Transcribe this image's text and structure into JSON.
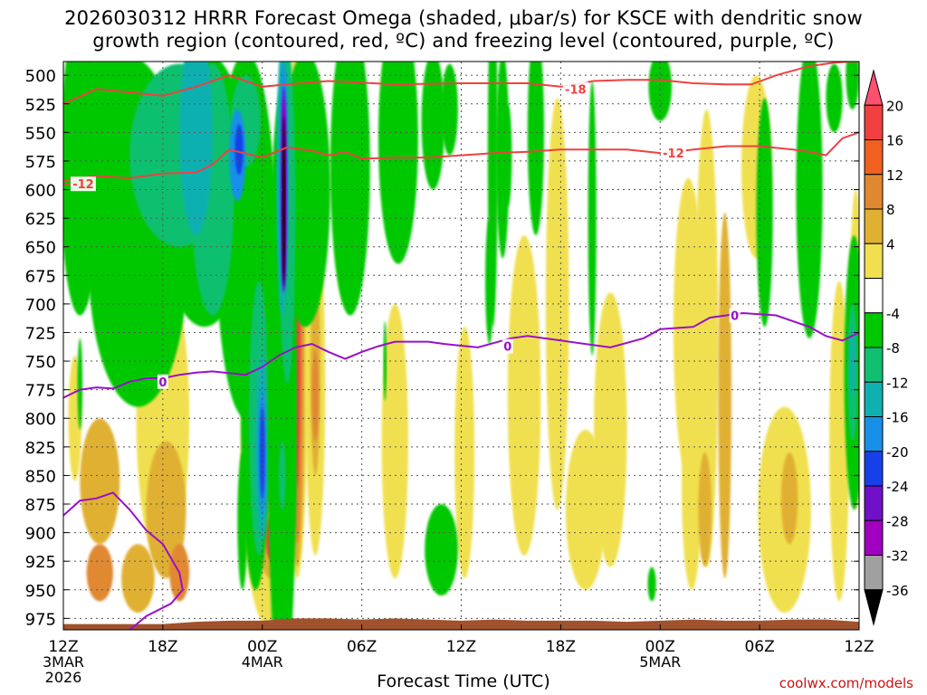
{
  "title": {
    "line1": "2026030312 HRRR Forecast Omega (shaded, μbar/s) for KSCE with dendritic snow",
    "line2": "growth region (contoured, red, ºC) and freezing level (contoured, purple, ºC)"
  },
  "footer": {
    "xlabel": "Forecast Time (UTC)",
    "credit": "coolwx.com/models"
  },
  "colors": {
    "dendritic_contour": "#f04040",
    "freezing_contour": "#9a10c8",
    "ground": "#a0522d",
    "grid": "#555555"
  },
  "chart_data": {
    "type": "heatmap",
    "title": "2026030312 HRRR Forecast Omega (shaded, μbar/s) for KSCE with dendritic snow growth region (contoured, red, ºC) and freezing level (contoured, purple, ºC)",
    "xlabel": "Forecast Time (UTC)",
    "ylabel": "",
    "y_axis": {
      "ticks": [
        500,
        525,
        550,
        575,
        600,
        625,
        650,
        675,
        700,
        725,
        750,
        775,
        800,
        825,
        850,
        875,
        900,
        925,
        950,
        975
      ],
      "ylim": [
        985,
        488
      ],
      "unit": "mb"
    },
    "x_axis": {
      "hours": [
        0,
        6,
        12,
        18,
        24,
        30,
        36,
        42,
        48
      ],
      "tick_labels": [
        "12Z",
        "18Z",
        "00Z",
        "06Z",
        "12Z",
        "18Z",
        "00Z",
        "06Z",
        "12Z"
      ],
      "date_labels": [
        {
          "hour": 0,
          "lines": [
            "3MAR",
            "2026"
          ]
        },
        {
          "hour": 12,
          "lines": [
            "4MAR"
          ]
        },
        {
          "hour": 36,
          "lines": [
            "5MAR"
          ]
        }
      ],
      "xlim": [
        0,
        48
      ]
    },
    "colorbar": {
      "labels": [
        "20",
        "16",
        "12",
        "8",
        "4",
        "-4",
        "-8",
        "-12",
        "-16",
        "-20",
        "-24",
        "-28",
        "-32",
        "-36"
      ],
      "colors": [
        "#ff5070",
        "#f04040",
        "#f06020",
        "#e08830",
        "#e0b030",
        "#f0e050",
        "#ffffff",
        "#00c800",
        "#10c070",
        "#10b0b0",
        "#1890e8",
        "#1840e8",
        "#7010c8",
        "#a000c0",
        "#a0a0a0",
        "#000000"
      ]
    },
    "omega_blobs": [
      {
        "h": 2.2,
        "p": 855,
        "rh": 1.2,
        "rp": 55,
        "c": 3
      },
      {
        "h": 2.2,
        "p": 935,
        "rh": 0.8,
        "rp": 25,
        "c": 4
      },
      {
        "h": 6.0,
        "p": 800,
        "rh": 1.6,
        "rp": 130,
        "c": 2
      },
      {
        "h": 6.2,
        "p": 880,
        "rh": 1.2,
        "rp": 60,
        "c": 3
      },
      {
        "h": 7.0,
        "p": 935,
        "rh": 0.6,
        "rp": 25,
        "c": 4
      },
      {
        "h": 5.0,
        "p": 735,
        "rh": 0.9,
        "rp": 45,
        "c": 2
      },
      {
        "h": 4.5,
        "p": 940,
        "rh": 1.0,
        "rp": 30,
        "c": 3
      },
      {
        "h": 12.5,
        "p": 835,
        "rh": 1.8,
        "rp": 150,
        "c": 2
      },
      {
        "h": 12.5,
        "p": 830,
        "rh": 1.2,
        "rp": 110,
        "c": 3
      },
      {
        "h": 12.5,
        "p": 805,
        "rh": 0.8,
        "rp": 70,
        "c": 4
      },
      {
        "h": 12.5,
        "p": 775,
        "rh": 0.4,
        "rp": 25,
        "c": 5
      },
      {
        "h": 12.6,
        "p": 905,
        "rh": 0.4,
        "rp": 20,
        "c": 5
      },
      {
        "h": 14.1,
        "p": 700,
        "rh": 0.7,
        "rp": 240,
        "c": 2
      },
      {
        "h": 14.1,
        "p": 730,
        "rh": 0.5,
        "rp": 200,
        "c": 3
      },
      {
        "h": 14.1,
        "p": 740,
        "rh": 0.35,
        "rp": 170,
        "c": 4
      },
      {
        "h": 14.1,
        "p": 740,
        "rh": 0.2,
        "rp": 120,
        "c": 5
      },
      {
        "h": 17.0,
        "p": 610,
        "rh": 0.6,
        "rp": 90,
        "c": 2
      },
      {
        "h": 19.6,
        "p": 515,
        "rh": 0.4,
        "rp": 35,
        "c": 2
      },
      {
        "h": 20.0,
        "p": 820,
        "rh": 0.8,
        "rp": 120,
        "c": 2
      },
      {
        "h": 24.2,
        "p": 830,
        "rh": 0.6,
        "rp": 110,
        "c": 2
      },
      {
        "h": 27.8,
        "p": 780,
        "rh": 1.0,
        "rp": 140,
        "c": 2
      },
      {
        "h": 29.8,
        "p": 700,
        "rh": 0.7,
        "rp": 180,
        "c": 2
      },
      {
        "h": 31.5,
        "p": 880,
        "rh": 1.2,
        "rp": 70,
        "c": 2
      },
      {
        "h": 33.0,
        "p": 810,
        "rh": 1.0,
        "rp": 120,
        "c": 2
      },
      {
        "h": 37.7,
        "p": 720,
        "rh": 0.9,
        "rp": 130,
        "c": 2
      },
      {
        "h": 37.9,
        "p": 860,
        "rh": 0.6,
        "rp": 90,
        "c": 2
      },
      {
        "h": 38.8,
        "p": 730,
        "rh": 0.7,
        "rp": 200,
        "c": 2
      },
      {
        "h": 39.9,
        "p": 780,
        "rh": 0.4,
        "rp": 160,
        "c": 3
      },
      {
        "h": 38.7,
        "p": 880,
        "rh": 0.4,
        "rp": 50,
        "c": 3
      },
      {
        "h": 41.8,
        "p": 580,
        "rh": 0.9,
        "rp": 80,
        "c": 2
      },
      {
        "h": 43.5,
        "p": 880,
        "rh": 1.6,
        "rp": 90,
        "c": 2
      },
      {
        "h": 43.8,
        "p": 870,
        "rh": 0.5,
        "rp": 40,
        "c": 3
      },
      {
        "h": 46.8,
        "p": 820,
        "rh": 0.6,
        "rp": 140,
        "c": 2
      },
      {
        "h": 47.8,
        "p": 740,
        "rh": 0.4,
        "rp": 140,
        "c": 2
      },
      {
        "h": 0.7,
        "p": 800,
        "rh": 0.4,
        "rp": 55,
        "c": 2
      },
      {
        "h": -0.2,
        "p": 560,
        "rh": 0.3,
        "rp": 30,
        "c": 2
      },
      {
        "h": 2.0,
        "p": 640,
        "rh": 0.6,
        "rp": 40,
        "c": 2
      },
      {
        "h": 15.2,
        "p": 770,
        "rh": 0.6,
        "rp": 150,
        "c": 2
      },
      {
        "h": 15.2,
        "p": 760,
        "rh": 0.3,
        "rp": 90,
        "c": 3
      },
      {
        "h": 15.2,
        "p": 780,
        "rh": 0.2,
        "rp": 40,
        "c": 4
      },
      {
        "h": 4.5,
        "p": 660,
        "rh": 3.0,
        "rp": 130,
        "c": 7
      },
      {
        "h": 8.5,
        "p": 600,
        "rh": 2.8,
        "rp": 120,
        "c": 7
      },
      {
        "h": 3.3,
        "p": 540,
        "rh": 3.0,
        "rp": 60,
        "c": 7
      },
      {
        "h": 1.0,
        "p": 580,
        "rh": 1.2,
        "rp": 130,
        "c": 7
      },
      {
        "h": 11.0,
        "p": 640,
        "rh": 1.8,
        "rp": 160,
        "c": 7
      },
      {
        "h": 7.0,
        "p": 570,
        "rh": 3.0,
        "rp": 80,
        "c": 8
      },
      {
        "h": 9.0,
        "p": 600,
        "rh": 1.3,
        "rp": 110,
        "c": 8
      },
      {
        "h": 8.0,
        "p": 550,
        "rh": 1.0,
        "rp": 90,
        "c": 9
      },
      {
        "h": 11.0,
        "p": 540,
        "rh": 0.9,
        "rp": 40,
        "c": 8
      },
      {
        "h": 10.5,
        "p": 570,
        "rh": 0.5,
        "rp": 40,
        "c": 10
      },
      {
        "h": 10.6,
        "p": 565,
        "rh": 0.25,
        "rp": 22,
        "c": 11
      },
      {
        "h": 14.6,
        "p": 600,
        "rh": 1.5,
        "rp": 120,
        "c": 7
      },
      {
        "h": 17.3,
        "p": 580,
        "rh": 1.2,
        "rp": 130,
        "c": 7
      },
      {
        "h": 20.2,
        "p": 555,
        "rh": 1.2,
        "rp": 110,
        "c": 7
      },
      {
        "h": 22.3,
        "p": 540,
        "rh": 0.7,
        "rp": 60,
        "c": 7
      },
      {
        "h": 23.3,
        "p": 530,
        "rh": 0.5,
        "rp": 40,
        "c": 7
      },
      {
        "h": 28.5,
        "p": 550,
        "rh": 0.5,
        "rp": 90,
        "c": 7
      },
      {
        "h": 31.9,
        "p": 625,
        "rh": 0.25,
        "rp": 120,
        "c": 7
      },
      {
        "h": 11.6,
        "p": 790,
        "rh": 0.9,
        "rp": 160,
        "c": 7
      },
      {
        "h": 11.8,
        "p": 800,
        "rh": 0.6,
        "rp": 120,
        "c": 8
      },
      {
        "h": 12.0,
        "p": 825,
        "rh": 0.4,
        "rp": 80,
        "c": 9
      },
      {
        "h": 12.0,
        "p": 830,
        "rh": 0.25,
        "rp": 55,
        "c": 10
      },
      {
        "h": 12.0,
        "p": 830,
        "rh": 0.15,
        "rp": 40,
        "c": 11
      },
      {
        "h": 13.2,
        "p": 780,
        "rh": 0.9,
        "rp": 270,
        "c": 7
      },
      {
        "h": 13.5,
        "p": 620,
        "rh": 0.5,
        "rp": 150,
        "c": 8
      },
      {
        "h": 13.2,
        "p": 590,
        "rh": 0.35,
        "rp": 120,
        "c": 9
      },
      {
        "h": 13.3,
        "p": 590,
        "rh": 0.25,
        "rp": 100,
        "c": 10
      },
      {
        "h": 13.3,
        "p": 600,
        "rh": 0.18,
        "rp": 90,
        "c": 12
      },
      {
        "h": 13.3,
        "p": 600,
        "rh": 0.13,
        "rp": 80,
        "c": 13
      },
      {
        "h": 13.3,
        "p": 610,
        "rh": 0.09,
        "rp": 75,
        "c": 15
      },
      {
        "h": 13.5,
        "p": 860,
        "rh": 0.5,
        "rp": 70,
        "c": 7
      },
      {
        "h": 13.2,
        "p": 850,
        "rh": 0.2,
        "rp": 30,
        "c": 8
      },
      {
        "h": 10.8,
        "p": 890,
        "rh": 0.3,
        "rp": 60,
        "c": 7
      },
      {
        "h": 22.8,
        "p": 915,
        "rh": 1.0,
        "rp": 40,
        "c": 7
      },
      {
        "h": 25.7,
        "p": 680,
        "rh": 0.25,
        "rp": 55,
        "c": 7
      },
      {
        "h": 26.5,
        "p": 570,
        "rh": 0.4,
        "rp": 90,
        "c": 7
      },
      {
        "h": 19.7,
        "p": 520,
        "rh": 0.3,
        "rp": 30,
        "c": 7
      },
      {
        "h": 25.9,
        "p": 570,
        "rh": 0.3,
        "rp": 150,
        "c": 7
      },
      {
        "h": 19.4,
        "p": 750,
        "rh": 0.1,
        "rp": 35,
        "c": 7
      },
      {
        "h": 1.0,
        "p": 770,
        "rh": 0.15,
        "rp": 40,
        "c": 7
      },
      {
        "h": 26.8,
        "p": 570,
        "rh": 0.25,
        "rp": 45,
        "c": 7
      },
      {
        "h": 36.0,
        "p": 510,
        "rh": 0.7,
        "rp": 30,
        "c": 7
      },
      {
        "h": 45.0,
        "p": 600,
        "rh": 0.8,
        "rp": 130,
        "c": 7
      },
      {
        "h": 47.7,
        "p": 760,
        "rh": 0.6,
        "rp": 120,
        "c": 7
      },
      {
        "h": 47.6,
        "p": 760,
        "rh": 0.3,
        "rp": 60,
        "c": 8
      },
      {
        "h": 47.6,
        "p": 750,
        "rh": 0.15,
        "rp": 30,
        "c": 9
      },
      {
        "h": 47.6,
        "p": 500,
        "rh": 0.4,
        "rp": 30,
        "c": 7
      },
      {
        "h": 42.3,
        "p": 620,
        "rh": 0.5,
        "rp": 100,
        "c": 7
      },
      {
        "h": 35.5,
        "p": 945,
        "rh": 0.25,
        "rp": 15,
        "c": 7
      },
      {
        "h": 46.5,
        "p": 520,
        "rh": 0.5,
        "rp": 30,
        "c": 7
      }
    ],
    "dendritic_contours": [
      {
        "label": "-18",
        "label_at": [
          30.9,
          512
        ],
        "points": [
          [
            0,
            525
          ],
          [
            2,
            512
          ],
          [
            4,
            515
          ],
          [
            6,
            518
          ],
          [
            8,
            510
          ],
          [
            10,
            500
          ],
          [
            12,
            510
          ],
          [
            13.5,
            508
          ],
          [
            16,
            505
          ],
          [
            20,
            508
          ],
          [
            24,
            507
          ],
          [
            28,
            507
          ],
          [
            30,
            510
          ],
          [
            32,
            505
          ],
          [
            34,
            504
          ],
          [
            36,
            504
          ],
          [
            38,
            507
          ],
          [
            40,
            508
          ],
          [
            41.5,
            508
          ],
          [
            43,
            500
          ],
          [
            45,
            492
          ],
          [
            46.5,
            489
          ],
          [
            47.5,
            488
          ],
          [
            48,
            488
          ]
        ]
      },
      {
        "label": "-12",
        "label_at": [
          36.8,
          568
        ],
        "points": [
          [
            0,
            592
          ],
          [
            2,
            588
          ],
          [
            4,
            590
          ],
          [
            6,
            586
          ],
          [
            8,
            585
          ],
          [
            9,
            578
          ],
          [
            10,
            565
          ],
          [
            12,
            572
          ],
          [
            13.5,
            563
          ],
          [
            15,
            566
          ],
          [
            16,
            570
          ],
          [
            17,
            567
          ],
          [
            18,
            573
          ],
          [
            20,
            572
          ],
          [
            22,
            572
          ],
          [
            24,
            570
          ],
          [
            26,
            568
          ],
          [
            28,
            567
          ],
          [
            30,
            565
          ],
          [
            32,
            565
          ],
          [
            34,
            565
          ],
          [
            36,
            568
          ],
          [
            38,
            565
          ],
          [
            40,
            562
          ],
          [
            42,
            562
          ],
          [
            44,
            565
          ],
          [
            45,
            567
          ],
          [
            46,
            570
          ],
          [
            47,
            555
          ],
          [
            48,
            550
          ]
        ]
      },
      {
        "label": "-12",
        "label_at": [
          1.2,
          595
        ],
        "points": [
          [
            0,
            595
          ],
          [
            1.0,
            595
          ]
        ]
      }
    ],
    "freezing_contours": [
      {
        "label": "0",
        "label_at": [
          6.0,
          768
        ],
        "points": [
          [
            0,
            782
          ],
          [
            1,
            775
          ],
          [
            2,
            773
          ],
          [
            3,
            774
          ],
          [
            4,
            768
          ],
          [
            5,
            765
          ],
          [
            6,
            765
          ],
          [
            7,
            762
          ],
          [
            8,
            760
          ],
          [
            9,
            759
          ],
          [
            11,
            762
          ],
          [
            12,
            755
          ],
          [
            13,
            745
          ],
          [
            14,
            738
          ],
          [
            15,
            735
          ],
          [
            16,
            742
          ],
          [
            17,
            748
          ],
          [
            18,
            742
          ],
          [
            19,
            737
          ],
          [
            20,
            733
          ],
          [
            22,
            733
          ],
          [
            23,
            735
          ],
          [
            25,
            738
          ],
          [
            27,
            730
          ],
          [
            28,
            728
          ],
          [
            30,
            732
          ],
          [
            33,
            738
          ],
          [
            35,
            730
          ],
          [
            36,
            722
          ],
          [
            38,
            720
          ],
          [
            39,
            712
          ],
          [
            41,
            708
          ],
          [
            43,
            710
          ],
          [
            45,
            720
          ],
          [
            46,
            728
          ],
          [
            47,
            732
          ],
          [
            48,
            725
          ]
        ]
      },
      {
        "label": "",
        "points": [
          [
            0,
            885
          ],
          [
            1,
            872
          ],
          [
            2,
            870
          ],
          [
            3,
            865
          ],
          [
            4,
            880
          ],
          [
            5,
            898
          ],
          [
            6,
            910
          ],
          [
            7,
            935
          ],
          [
            7.2,
            950
          ],
          [
            6.5,
            962
          ],
          [
            5,
            973
          ],
          [
            4,
            985
          ]
        ]
      }
    ],
    "freezing_labels": [
      {
        "label": "0",
        "at": [
          26.8,
          737
        ]
      },
      {
        "label": "0",
        "at": [
          40.5,
          710
        ]
      }
    ],
    "ground": [
      [
        0,
        980
      ],
      [
        6,
        980
      ],
      [
        8,
        978
      ],
      [
        10,
        977
      ],
      [
        12,
        977
      ],
      [
        14,
        975
      ],
      [
        16,
        975
      ],
      [
        18,
        976
      ],
      [
        20,
        975
      ],
      [
        22,
        976
      ],
      [
        24,
        977
      ],
      [
        26,
        976
      ],
      [
        28,
        977
      ],
      [
        30,
        977
      ],
      [
        32,
        977
      ],
      [
        34,
        978
      ],
      [
        36,
        977
      ],
      [
        38,
        976
      ],
      [
        40,
        977
      ],
      [
        42,
        977
      ],
      [
        44,
        976
      ],
      [
        46,
        976
      ],
      [
        48,
        978
      ]
    ]
  }
}
